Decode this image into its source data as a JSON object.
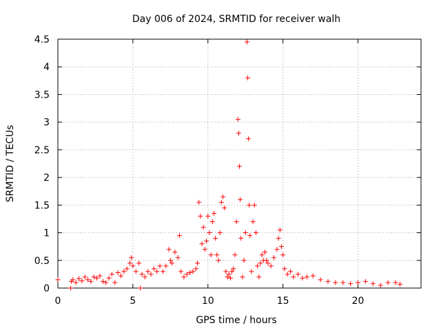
{
  "chart_data": {
    "type": "scatter",
    "title": "Day 006 of 2024, SRMTID for receiver walh",
    "xlabel": "GPS time / hours",
    "ylabel": "SRMTID / TECUs",
    "xlim": [
      0,
      24.2
    ],
    "ylim": [
      0,
      4.5
    ],
    "xticks": [
      0,
      5,
      10,
      15,
      20
    ],
    "xtick_labels": [
      "0",
      "5",
      "10",
      "15",
      "20"
    ],
    "yticks": [
      0,
      0.5,
      1,
      1.5,
      2,
      2.5,
      3,
      3.5,
      4,
      4.5
    ],
    "ytick_labels": [
      "0",
      "0.5",
      "1",
      "1.5",
      "2",
      "2.5",
      "3",
      "3.5",
      "4",
      "4.5"
    ],
    "grid": true,
    "marker": "plus",
    "series": [
      {
        "name": "SRMTID",
        "color": "#ff0000",
        "points": [
          [
            0.0,
            0.15
          ],
          [
            0.85,
            0.0
          ],
          [
            0.9,
            0.12
          ],
          [
            1.0,
            0.15
          ],
          [
            1.2,
            0.1
          ],
          [
            1.4,
            0.17
          ],
          [
            1.6,
            0.13
          ],
          [
            1.8,
            0.2
          ],
          [
            2.0,
            0.15
          ],
          [
            2.2,
            0.12
          ],
          [
            2.4,
            0.2
          ],
          [
            2.6,
            0.18
          ],
          [
            2.8,
            0.22
          ],
          [
            3.0,
            0.12
          ],
          [
            3.2,
            0.1
          ],
          [
            3.4,
            0.18
          ],
          [
            3.6,
            0.25
          ],
          [
            3.8,
            0.1
          ],
          [
            4.0,
            0.28
          ],
          [
            4.2,
            0.22
          ],
          [
            4.4,
            0.3
          ],
          [
            4.6,
            0.35
          ],
          [
            4.8,
            0.45
          ],
          [
            4.9,
            0.55
          ],
          [
            5.0,
            0.4
          ],
          [
            5.2,
            0.3
          ],
          [
            5.4,
            0.45
          ],
          [
            5.5,
            0.0
          ],
          [
            5.6,
            0.25
          ],
          [
            5.8,
            0.2
          ],
          [
            6.0,
            0.3
          ],
          [
            6.2,
            0.25
          ],
          [
            6.4,
            0.35
          ],
          [
            6.6,
            0.3
          ],
          [
            6.8,
            0.4
          ],
          [
            7.0,
            0.3
          ],
          [
            7.2,
            0.4
          ],
          [
            7.4,
            0.7
          ],
          [
            7.5,
            0.5
          ],
          [
            7.6,
            0.45
          ],
          [
            7.8,
            0.65
          ],
          [
            8.0,
            0.55
          ],
          [
            8.1,
            0.95
          ],
          [
            8.2,
            0.3
          ],
          [
            8.4,
            0.2
          ],
          [
            8.6,
            0.25
          ],
          [
            8.8,
            0.28
          ],
          [
            9.0,
            0.3
          ],
          [
            9.2,
            0.35
          ],
          [
            9.3,
            0.45
          ],
          [
            9.4,
            1.55
          ],
          [
            9.5,
            1.3
          ],
          [
            9.6,
            0.8
          ],
          [
            9.7,
            1.1
          ],
          [
            9.8,
            0.7
          ],
          [
            9.9,
            0.85
          ],
          [
            10.0,
            1.3
          ],
          [
            10.1,
            1.0
          ],
          [
            10.2,
            0.6
          ],
          [
            10.3,
            1.2
          ],
          [
            10.4,
            1.35
          ],
          [
            10.5,
            0.9
          ],
          [
            10.6,
            0.6
          ],
          [
            10.7,
            0.5
          ],
          [
            10.8,
            1.0
          ],
          [
            10.9,
            1.55
          ],
          [
            11.0,
            1.65
          ],
          [
            11.1,
            1.45
          ],
          [
            11.2,
            0.3
          ],
          [
            11.3,
            0.2
          ],
          [
            11.4,
            0.25
          ],
          [
            11.5,
            0.18
          ],
          [
            11.6,
            0.3
          ],
          [
            11.7,
            0.35
          ],
          [
            11.8,
            0.6
          ],
          [
            11.9,
            1.2
          ],
          [
            12.0,
            3.05
          ],
          [
            12.05,
            2.8
          ],
          [
            12.1,
            2.2
          ],
          [
            12.15,
            1.6
          ],
          [
            12.2,
            0.9
          ],
          [
            12.3,
            0.2
          ],
          [
            12.4,
            0.5
          ],
          [
            12.5,
            1.0
          ],
          [
            12.6,
            4.45
          ],
          [
            12.65,
            3.8
          ],
          [
            12.7,
            2.7
          ],
          [
            12.75,
            1.5
          ],
          [
            12.8,
            0.95
          ],
          [
            12.9,
            0.3
          ],
          [
            13.0,
            1.2
          ],
          [
            13.1,
            1.5
          ],
          [
            13.2,
            1.0
          ],
          [
            13.3,
            0.4
          ],
          [
            13.4,
            0.2
          ],
          [
            13.5,
            0.45
          ],
          [
            13.6,
            0.6
          ],
          [
            13.7,
            0.5
          ],
          [
            13.8,
            0.65
          ],
          [
            13.9,
            0.5
          ],
          [
            14.0,
            0.45
          ],
          [
            14.2,
            0.4
          ],
          [
            14.4,
            0.55
          ],
          [
            14.6,
            0.7
          ],
          [
            14.7,
            0.9
          ],
          [
            14.8,
            1.05
          ],
          [
            14.9,
            0.75
          ],
          [
            15.0,
            0.6
          ],
          [
            15.1,
            0.35
          ],
          [
            15.3,
            0.25
          ],
          [
            15.5,
            0.3
          ],
          [
            15.7,
            0.2
          ],
          [
            16.0,
            0.25
          ],
          [
            16.3,
            0.18
          ],
          [
            16.6,
            0.2
          ],
          [
            17.0,
            0.22
          ],
          [
            17.5,
            0.15
          ],
          [
            18.0,
            0.12
          ],
          [
            18.5,
            0.1
          ],
          [
            19.0,
            0.1
          ],
          [
            19.5,
            0.08
          ],
          [
            20.0,
            0.1
          ],
          [
            20.5,
            0.12
          ],
          [
            21.0,
            0.08
          ],
          [
            21.5,
            0.05
          ],
          [
            22.0,
            0.1
          ],
          [
            22.5,
            0.1
          ],
          [
            22.8,
            0.07
          ]
        ]
      }
    ]
  }
}
